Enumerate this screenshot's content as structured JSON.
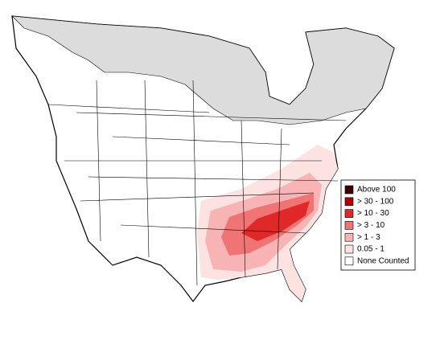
{
  "legend": {
    "items": [
      {
        "label": "Above 100",
        "color": "#3d0000"
      },
      {
        "label": "> 30 - 100",
        "color": "#b00000"
      },
      {
        "label": "> 10 - 30",
        "color": "#e02828"
      },
      {
        "label": "> 3 - 10",
        "color": "#f07474"
      },
      {
        "label": "> 1 - 3",
        "color": "#f8b4b4"
      },
      {
        "label": "0.05 - 1",
        "color": "#fde2e2"
      },
      {
        "label": "None Counted",
        "color": "#ffffff"
      }
    ]
  }
}
